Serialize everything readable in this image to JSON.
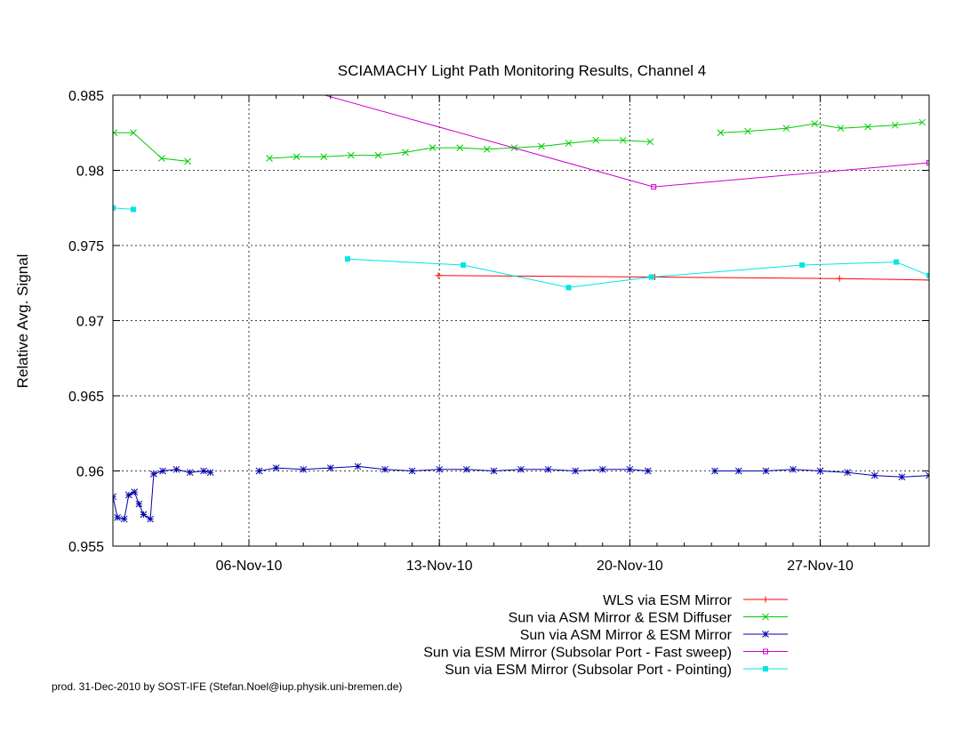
{
  "chart_data": {
    "type": "line",
    "title": "SCIAMACHY Light Path Monitoring Results, Channel 4",
    "ylabel": "Relative Avg. Signal",
    "xlabel": "",
    "ylim": [
      0.955,
      0.985
    ],
    "xlim": [
      "2010-11-01",
      "2010-12-01"
    ],
    "x_ticks": [
      "06-Nov-10",
      "13-Nov-10",
      "20-Nov-10",
      "27-Nov-10"
    ],
    "y_ticks": [
      "0.955",
      "0.96",
      "0.965",
      "0.97",
      "0.975",
      "0.98",
      "0.985"
    ],
    "grid": true,
    "legend_position": "bottom-right",
    "series": [
      {
        "name": "WLS via ESM Mirror",
        "color": "#ff0000",
        "marker": "plus",
        "segments": [
          [
            [
              "2010-11-12 23:00",
              0.973
            ],
            [
              "2010-11-20 22:00",
              0.9729
            ],
            [
              "2010-11-27 17:00",
              0.9728
            ],
            [
              "2010-12-01 00:00",
              0.9727
            ]
          ]
        ]
      },
      {
        "name": "Sun via ASM Mirror & ESM Diffuser",
        "color": "#00cc00",
        "marker": "x",
        "segments": [
          [
            [
              "2010-11-01 01:00",
              0.9825
            ],
            [
              "2010-11-01 18:00",
              0.9825
            ],
            [
              "2010-11-02 19:00",
              0.9808
            ],
            [
              "2010-11-03 18:00",
              0.9806
            ]
          ],
          [
            [
              "2010-11-06 18:00",
              0.9808
            ],
            [
              "2010-11-07 18:00",
              0.9809
            ],
            [
              "2010-11-08 18:00",
              0.9809
            ],
            [
              "2010-11-09 18:00",
              0.981
            ],
            [
              "2010-11-10 18:00",
              0.981
            ],
            [
              "2010-11-11 18:00",
              0.9812
            ],
            [
              "2010-11-12 18:00",
              0.9815
            ],
            [
              "2010-11-13 18:00",
              0.9815
            ],
            [
              "2010-11-14 18:00",
              0.9814
            ],
            [
              "2010-11-15 18:00",
              0.9815
            ],
            [
              "2010-11-16 18:00",
              0.9816
            ],
            [
              "2010-11-17 18:00",
              0.9818
            ],
            [
              "2010-11-18 18:00",
              0.982
            ],
            [
              "2010-11-19 18:00",
              0.982
            ],
            [
              "2010-11-20 18:00",
              0.9819
            ]
          ],
          [
            [
              "2010-11-23 08:00",
              0.9825
            ],
            [
              "2010-11-24 08:00",
              0.9826
            ],
            [
              "2010-11-25 18:00",
              0.9828
            ],
            [
              "2010-11-26 19:00",
              0.9831
            ],
            [
              "2010-11-27 18:00",
              0.9828
            ],
            [
              "2010-11-28 18:00",
              0.9829
            ],
            [
              "2010-11-29 18:00",
              0.983
            ],
            [
              "2010-11-30 18:00",
              0.9832
            ]
          ]
        ]
      },
      {
        "name": "Sun via ASM Mirror & ESM Mirror",
        "color": "#0000aa",
        "marker": "star",
        "segments": [
          [
            [
              "2010-11-01 00:00",
              0.9583
            ],
            [
              "2010-11-01 04:00",
              0.9569
            ],
            [
              "2010-11-01 10:00",
              0.9568
            ],
            [
              "2010-11-01 14:00",
              0.9584
            ],
            [
              "2010-11-01 19:00",
              0.9586
            ],
            [
              "2010-11-01 23:00",
              0.9578
            ],
            [
              "2010-11-02 03:00",
              0.9571
            ],
            [
              "2010-11-02 09:00",
              0.9568
            ],
            [
              "2010-11-02 12:00",
              0.9598
            ],
            [
              "2010-11-02 20:00",
              0.96
            ],
            [
              "2010-11-03 08:00",
              0.9601
            ],
            [
              "2010-11-03 20:00",
              0.9599
            ],
            [
              "2010-11-04 08:00",
              0.96
            ],
            [
              "2010-11-04 14:00",
              0.9599
            ]
          ],
          [
            [
              "2010-11-06 09:00",
              0.96
            ],
            [
              "2010-11-07 00:00",
              0.9602
            ],
            [
              "2010-11-08 00:00",
              0.9601
            ],
            [
              "2010-11-09 00:00",
              0.9602
            ],
            [
              "2010-11-10 00:00",
              0.9603
            ],
            [
              "2010-11-11 00:00",
              0.9601
            ],
            [
              "2010-11-12 00:00",
              0.96
            ],
            [
              "2010-11-13 00:00",
              0.9601
            ],
            [
              "2010-11-14 00:00",
              0.9601
            ],
            [
              "2010-11-15 00:00",
              0.96
            ],
            [
              "2010-11-16 00:00",
              0.9601
            ],
            [
              "2010-11-17 00:00",
              0.9601
            ],
            [
              "2010-11-18 00:00",
              0.96
            ],
            [
              "2010-11-19 00:00",
              0.9601
            ],
            [
              "2010-11-20 00:00",
              0.9601
            ],
            [
              "2010-11-20 16:00",
              0.96
            ]
          ],
          [
            [
              "2010-11-23 03:00",
              0.96
            ],
            [
              "2010-11-24 00:00",
              0.96
            ],
            [
              "2010-11-25 00:00",
              0.96
            ],
            [
              "2010-11-26 00:00",
              0.9601
            ],
            [
              "2010-11-27 00:00",
              0.96
            ],
            [
              "2010-11-28 00:00",
              0.9599
            ],
            [
              "2010-11-29 00:00",
              0.9597
            ],
            [
              "2010-11-30 00:00",
              0.9596
            ],
            [
              "2010-12-01 00:00",
              0.9597
            ]
          ]
        ]
      },
      {
        "name": "Sun via ESM Mirror (Subsolar Port - Fast sweep)",
        "color": "#cc00cc",
        "marker": "square-open",
        "segments": [
          [
            [
              "2010-11-07 19:00",
              0.9855
            ],
            [
              "2010-11-20 21:00",
              0.9789
            ],
            [
              "2010-12-01 00:00",
              0.9805
            ]
          ]
        ]
      },
      {
        "name": "Sun via ESM Mirror (Subsolar Port - Pointing)",
        "color": "#00e5e5",
        "marker": "square-filled",
        "segments": [
          [
            [
              "2010-11-01 00:00",
              0.9775
            ],
            [
              "2010-11-01 18:00",
              0.9774
            ]
          ],
          [
            [
              "2010-11-09 15:00",
              0.9741
            ],
            [
              "2010-11-13 21:00",
              0.9737
            ],
            [
              "2010-11-17 18:00",
              0.9722
            ],
            [
              "2010-11-20 19:00",
              0.9729
            ],
            [
              "2010-11-26 08:00",
              0.9737
            ],
            [
              "2010-11-29 19:00",
              0.9739
            ],
            [
              "2010-12-01 00:00",
              0.973
            ]
          ]
        ]
      }
    ]
  },
  "footer": {
    "credit": "prod. 31-Dec-2010 by SOST-IFE (Stefan.Noel@iup.physik.uni-bremen.de)"
  }
}
